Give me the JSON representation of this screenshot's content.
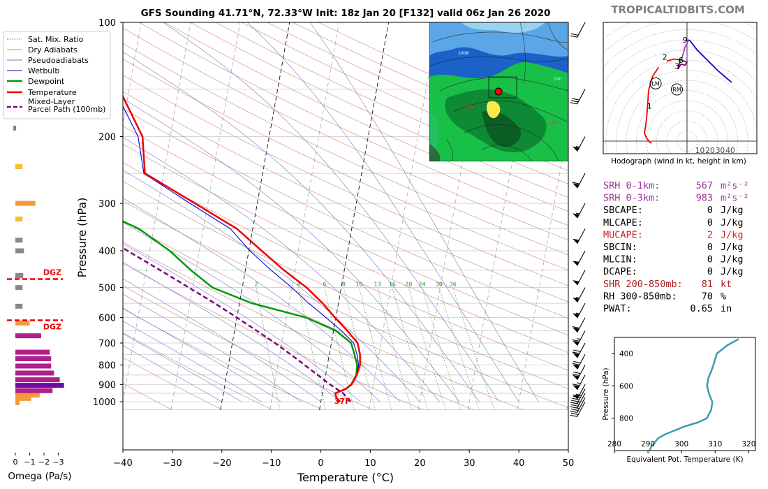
{
  "header": {
    "title": "GFS Sounding 41.71°N, 72.33°W Init: 18z Jan 20 [F132] valid 06z Jan 26 2020",
    "brand": "TROPICALTIDBITS.COM"
  },
  "colors": {
    "temperature": "#ee0000",
    "dewpoint": "#009900",
    "wetbulb": "#0000dd",
    "parcel": "#800080",
    "dry_adiabat": "#d08080",
    "pseudoadiabat": "#7777cc",
    "mixing_ratio": "#2e8b2e",
    "omega_orange": "#f49a3a",
    "omega_magenta": "#b0208c",
    "omega_purple": "#6a0ca0",
    "theta_e": "#3a9cb4"
  },
  "legend": {
    "items": [
      {
        "label": "Sat. Mix. Ratio",
        "style": "mixratio"
      },
      {
        "label": "Dry Adiabats",
        "style": "dry"
      },
      {
        "label": "Pseudoadiabats",
        "style": "pseudo"
      },
      {
        "label": "Wetbulb",
        "style": "wetbulb"
      },
      {
        "label": "Dewpoint",
        "style": "dewpoint"
      },
      {
        "label": "Temperature",
        "style": "temperature"
      },
      {
        "label": "Mixed-Layer",
        "label2": "Parcel Path (100mb)",
        "style": "parcel"
      }
    ]
  },
  "chart_data": [
    {
      "type": "line",
      "name": "skew-t",
      "xlabel": "Temperature (°C)",
      "ylabel": "Pressure (hPa)",
      "x_ticks": [
        -40,
        -30,
        -20,
        -10,
        0,
        10,
        20,
        30,
        40,
        50
      ],
      "y_ticks": [
        100,
        200,
        300,
        400,
        500,
        600,
        700,
        800,
        900,
        1000
      ],
      "xlim": [
        -40,
        50
      ],
      "ylim": [
        1050,
        100
      ],
      "y_scale": "log",
      "grid": true,
      "surface_temp_label": "37F",
      "mixing_ratio_labels": [
        "2",
        "4",
        "6",
        "8",
        "10",
        "13",
        "16",
        "20",
        "24",
        "30",
        "36"
      ],
      "series": [
        {
          "name": "Temperature",
          "points": [
            [
              1000,
              3.9
            ],
            [
              975,
              3.0
            ],
            [
              950,
              2.6
            ],
            [
              925,
              4.6
            ],
            [
              900,
              5.6
            ],
            [
              850,
              6.3
            ],
            [
              800,
              6.6
            ],
            [
              750,
              6.2
            ],
            [
              700,
              5.3
            ],
            [
              650,
              2.8
            ],
            [
              600,
              -0.2
            ],
            [
              550,
              -3.2
            ],
            [
              500,
              -7.0
            ],
            [
              450,
              -12.2
            ],
            [
              400,
              -17.4
            ],
            [
              350,
              -23.2
            ],
            [
              300,
              -32.6
            ],
            [
              250,
              -43.8
            ],
            [
              200,
              -45.6
            ],
            [
              150,
              -52.0
            ],
            [
              100,
              -65.0
            ]
          ]
        },
        {
          "name": "Dewpoint",
          "points": [
            [
              1000,
              3.6
            ],
            [
              975,
              3.0
            ],
            [
              950,
              2.6
            ],
            [
              925,
              4.6
            ],
            [
              900,
              5.5
            ],
            [
              850,
              6.2
            ],
            [
              800,
              6.0
            ],
            [
              750,
              5.1
            ],
            [
              700,
              4.0
            ],
            [
              650,
              0.5
            ],
            [
              600,
              -6.0
            ],
            [
              550,
              -17.5
            ],
            [
              500,
              -26.0
            ],
            [
              450,
              -31.0
            ],
            [
              400,
              -36.0
            ],
            [
              350,
              -43.0
            ],
            [
              300,
              -55.0
            ],
            [
              250,
              -67.0
            ],
            [
              200,
              -80.0
            ],
            [
              150,
              -85.0
            ],
            [
              100,
              -83.0
            ]
          ]
        },
        {
          "name": "Wetbulb",
          "points": [
            [
              1000,
              3.7
            ],
            [
              975,
              3.0
            ],
            [
              950,
              2.6
            ],
            [
              925,
              4.6
            ],
            [
              900,
              5.5
            ],
            [
              850,
              6.2
            ],
            [
              800,
              6.3
            ],
            [
              750,
              5.6
            ],
            [
              700,
              4.5
            ],
            [
              650,
              1.6
            ],
            [
              600,
              -2.0
            ],
            [
              550,
              -6.0
            ],
            [
              500,
              -10.0
            ],
            [
              450,
              -14.8
            ],
            [
              400,
              -19.8
            ],
            [
              350,
              -24.5
            ],
            [
              300,
              -33.6
            ],
            [
              250,
              -44.0
            ],
            [
              200,
              -46.5
            ],
            [
              150,
              -53.0
            ],
            [
              100,
              -66.0
            ]
          ]
        },
        {
          "name": "Mixed-Layer Parcel Path (100mb)",
          "points": [
            [
              1000,
              6.0
            ],
            [
              950,
              4.2
            ],
            [
              900,
              1.2
            ],
            [
              850,
              -1.6
            ],
            [
              800,
              -4.6
            ],
            [
              750,
              -7.8
            ],
            [
              700,
              -11.4
            ],
            [
              650,
              -15.5
            ],
            [
              600,
              -20.0
            ],
            [
              550,
              -25.0
            ],
            [
              500,
              -30.8
            ],
            [
              450,
              -37.2
            ],
            [
              400,
              -44.5
            ],
            [
              350,
              -52.5
            ],
            [
              300,
              -61.5
            ],
            [
              250,
              -71.5
            ],
            [
              240,
              -73.5
            ]
          ]
        }
      ]
    },
    {
      "type": "bar",
      "name": "omega",
      "xlabel": "Omega (Pa/s)",
      "x_ticks": [
        "0",
        "−1",
        "−2",
        "−3"
      ],
      "xlim": [
        0.1,
        -3.6
      ],
      "labels": [
        "DGZ",
        "DGZ"
      ],
      "dgz_top_hPa": 475,
      "dgz_bottom_hPa": 610,
      "bars": [
        {
          "p": 1005,
          "v": -0.3,
          "c": "omega_orange"
        },
        {
          "p": 980,
          "v": -1.1,
          "c": "omega_orange"
        },
        {
          "p": 960,
          "v": -1.7,
          "c": "omega_orange"
        },
        {
          "p": 935,
          "v": -2.6,
          "c": "omega_magenta"
        },
        {
          "p": 905,
          "v": -3.4,
          "c": "omega_purple"
        },
        {
          "p": 875,
          "v": -3.1,
          "c": "omega_magenta"
        },
        {
          "p": 840,
          "v": -2.7,
          "c": "omega_magenta"
        },
        {
          "p": 805,
          "v": -2.5,
          "c": "omega_magenta"
        },
        {
          "p": 770,
          "v": -2.5,
          "c": "omega_magenta"
        },
        {
          "p": 740,
          "v": -2.4,
          "c": "omega_magenta"
        },
        {
          "p": 670,
          "v": -1.8,
          "c": "omega_magenta"
        },
        {
          "p": 620,
          "v": -1.0,
          "c": "omega_orange"
        },
        {
          "p": 560,
          "v": -0.5,
          "c": "omega_grey"
        },
        {
          "p": 500,
          "v": -0.5,
          "c": "omega_grey"
        },
        {
          "p": 465,
          "v": -0.55,
          "c": "omega_grey"
        },
        {
          "p": 400,
          "v": -0.6,
          "c": "omega_grey"
        },
        {
          "p": 375,
          "v": -0.5,
          "c": "omega_grey"
        },
        {
          "p": 330,
          "v": -0.5,
          "c": "omega_yellow"
        },
        {
          "p": 300,
          "v": -1.4,
          "c": "omega_orange"
        },
        {
          "p": 240,
          "v": -0.5,
          "c": "omega_yellow"
        },
        {
          "p": 190,
          "v": -0.2,
          "c": "omega_grey"
        }
      ]
    },
    {
      "type": "line",
      "name": "hodograph",
      "caption": "Hodograph (wind in kt, height in km)",
      "x_ticks": [
        "10",
        "20",
        "30",
        "40"
      ],
      "points": [
        [
          -35,
          -2
        ],
        [
          -37,
          -1
        ],
        [
          -40,
          3
        ],
        [
          -42,
          8
        ],
        [
          -41,
          14
        ],
        [
          -40,
          22
        ],
        [
          -39,
          34
        ],
        [
          -38,
          50
        ],
        [
          -34,
          64
        ],
        [
          -28,
          73
        ],
        [
          -20,
          79
        ],
        [
          -13,
          81
        ],
        [
          -5,
          80
        ],
        [
          -3,
          79
        ],
        [
          0,
          78
        ],
        [
          -2,
          75
        ],
        [
          -6,
          76
        ],
        [
          -9,
          71
        ],
        [
          -7,
          79
        ],
        [
          -5,
          82
        ],
        [
          -3,
          89
        ],
        [
          -2,
          93
        ],
        [
          0,
          96
        ],
        [
          1,
          100
        ],
        [
          3,
          99
        ],
        [
          10,
          90
        ],
        [
          20,
          80
        ],
        [
          30,
          70
        ],
        [
          44,
          58
        ]
      ],
      "height_labels": [
        {
          "text": "1",
          "u": -37,
          "v": 35
        },
        {
          "text": "2",
          "u": -22,
          "v": 83
        },
        {
          "text": "3",
          "u": -10,
          "v": 74
        },
        {
          "text": "6",
          "u": -6,
          "v": 80
        },
        {
          "text": "9",
          "u": -2,
          "v": 100
        }
      ],
      "markers": [
        {
          "text": "LM",
          "u": -31,
          "v": 57
        },
        {
          "text": "RM",
          "u": -10,
          "v": 51
        }
      ]
    },
    {
      "type": "line",
      "name": "theta-e",
      "xlabel": "Equivalent Pot. Temperature (K)",
      "ylabel": "Pressure (hPa)",
      "x_ticks": [
        280,
        290,
        300,
        310,
        320
      ],
      "xlim": [
        280,
        322
      ],
      "y_ticks": [
        400,
        600,
        800
      ],
      "ylim": [
        1000,
        300
      ],
      "points": [
        [
          1000,
          290.5
        ],
        [
          975,
          291.0
        ],
        [
          950,
          292.0
        ],
        [
          925,
          293.0
        ],
        [
          900,
          295.0
        ],
        [
          875,
          298.0
        ],
        [
          850,
          301.0
        ],
        [
          825,
          305.0
        ],
        [
          800,
          307.5
        ],
        [
          750,
          308.8
        ],
        [
          700,
          309.2
        ],
        [
          650,
          308.2
        ],
        [
          600,
          307.6
        ],
        [
          550,
          308.0
        ],
        [
          500,
          309.0
        ],
        [
          450,
          309.8
        ],
        [
          400,
          310.5
        ],
        [
          350,
          313.5
        ],
        [
          310,
          317.0
        ]
      ]
    }
  ],
  "indices": [
    {
      "label": "SRH 0-1km:",
      "value": "567",
      "unit": "m²s⁻²",
      "color": "#993399"
    },
    {
      "label": "SRH 0-3km:",
      "value": "983",
      "unit": "m²s⁻²",
      "color": "#993399"
    },
    {
      "label": "SBCAPE:",
      "value": "0",
      "unit": "J/kg",
      "color": "#000000"
    },
    {
      "label": "MLCAPE:",
      "value": "0",
      "unit": "J/kg",
      "color": "#000000"
    },
    {
      "label": "MUCAPE:",
      "value": "2",
      "unit": "J/kg",
      "color": "#cc2222"
    },
    {
      "label": "SBCIN:",
      "value": "0",
      "unit": "J/kg",
      "color": "#000000"
    },
    {
      "label": "MLCIN:",
      "value": "0",
      "unit": "J/kg",
      "color": "#000000"
    },
    {
      "label": "DCAPE:",
      "value": "0",
      "unit": "J/kg",
      "color": "#000000"
    },
    {
      "label": "SHR 200-850mb:",
      "value": "81",
      "unit": "kt",
      "color": "#aa2222"
    },
    {
      "label": "RH 300-850mb:",
      "value": "70",
      "unit": "%",
      "color": "#000000"
    },
    {
      "label": "PWAT:",
      "value": "0.65",
      "unit": "in",
      "color": "#000000"
    }
  ],
  "wind_barbs": [
    {
      "p": 1000,
      "spd": 20
    },
    {
      "p": 975,
      "spd": 25
    },
    {
      "p": 950,
      "spd": 35
    },
    {
      "p": 925,
      "spd": 45
    },
    {
      "p": 900,
      "spd": 55
    },
    {
      "p": 850,
      "spd": 65
    },
    {
      "p": 800,
      "spd": 70
    },
    {
      "p": 750,
      "spd": 70
    },
    {
      "p": 700,
      "spd": 70
    },
    {
      "p": 650,
      "spd": 65
    },
    {
      "p": 600,
      "spd": 60
    },
    {
      "p": 550,
      "spd": 55
    },
    {
      "p": 500,
      "spd": 55
    },
    {
      "p": 450,
      "spd": 50
    },
    {
      "p": 400,
      "spd": 50
    },
    {
      "p": 350,
      "spd": 50
    },
    {
      "p": 300,
      "spd": 55
    },
    {
      "p": 250,
      "spd": 60
    },
    {
      "p": 200,
      "spd": 55
    },
    {
      "p": 150,
      "spd": 30
    },
    {
      "p": 100,
      "spd": 20
    }
  ],
  "map": {
    "labels": [
      "1008",
      "540",
      "546",
      "546"
    ]
  }
}
